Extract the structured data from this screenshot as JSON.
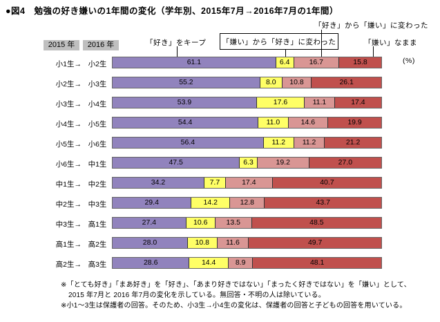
{
  "title": "●図4　勉強の好き嫌いの1年間の変化（学年別、2015年7月→2016年7月の1年間）",
  "header": {
    "year_badge_2015": "2015 年",
    "year_badge_2016": "2016 年",
    "unit_label": "(%)"
  },
  "legend": {
    "keep_like": "「好き」をキープ",
    "dislike_to_like": "「嫌い」から「好き」に変わった",
    "like_to_dislike": "「好き」から「嫌い」に変わった",
    "stay_dislike": "「嫌い」なまま"
  },
  "chart_data": {
    "type": "bar",
    "stacked": true,
    "orientation": "horizontal",
    "unit": "%",
    "xlim": [
      0,
      100
    ],
    "title": "勉強の好き嫌いの1年間の変化（学年別、2015年7月→2016年7月の1年間）",
    "categories": [
      {
        "from": "小1生→",
        "to": "小2生"
      },
      {
        "from": "小2生→",
        "to": "小3生"
      },
      {
        "from": "小3生→",
        "to": "小4生"
      },
      {
        "from": "小4生→",
        "to": "小5生"
      },
      {
        "from": "小5生→",
        "to": "小6生"
      },
      {
        "from": "小6生→",
        "to": "中1生"
      },
      {
        "from": "中1生→",
        "to": "中2生"
      },
      {
        "from": "中2生→",
        "to": "中3生"
      },
      {
        "from": "中3生→",
        "to": "高1生"
      },
      {
        "from": "高1生→",
        "to": "高2生"
      },
      {
        "from": "高2生→",
        "to": "高3生"
      }
    ],
    "series": [
      {
        "name": "「好き」をキープ",
        "color": "#9183bd",
        "values": [
          "61.1",
          "55.2",
          "53.9",
          "54.4",
          "56.4",
          "47.5",
          "34.2",
          "29.4",
          "27.4",
          "28.0",
          "28.6"
        ]
      },
      {
        "name": "「嫌い」から「好き」に変わった",
        "color": "#ffff66",
        "values": [
          "6.4",
          "8.0",
          "17.6",
          "11.0",
          "11.2",
          "6.3",
          "7.7",
          "14.2",
          "10.6",
          "10.8",
          "14.4"
        ]
      },
      {
        "name": "「好き」から「嫌い」に変わった",
        "color": "#d99694",
        "values": [
          "16.7",
          "10.8",
          "11.1",
          "14.6",
          "11.2",
          "19.2",
          "17.4",
          "12.8",
          "13.5",
          "11.6",
          "8.9"
        ]
      },
      {
        "name": "「嫌い」なまま",
        "color": "#c0504d",
        "values": [
          "15.8",
          "26.1",
          "17.4",
          "19.9",
          "21.2",
          "27.0",
          "40.7",
          "43.7",
          "48.5",
          "49.7",
          "48.1"
        ]
      }
    ]
  },
  "footnotes": [
    "※「とても好き」「まあ好き」を「好き」、「あまり好きではない」「まったく好きではない」を「嫌い」として、",
    "2015 年7月と 2016 年7月の変化を示している。無回答・不明の人は除いている。",
    "※小1～3生は保護者の回答。そのため、小3生→小4生の変化は、保護者の回答と子どもの回答を用いている。"
  ]
}
